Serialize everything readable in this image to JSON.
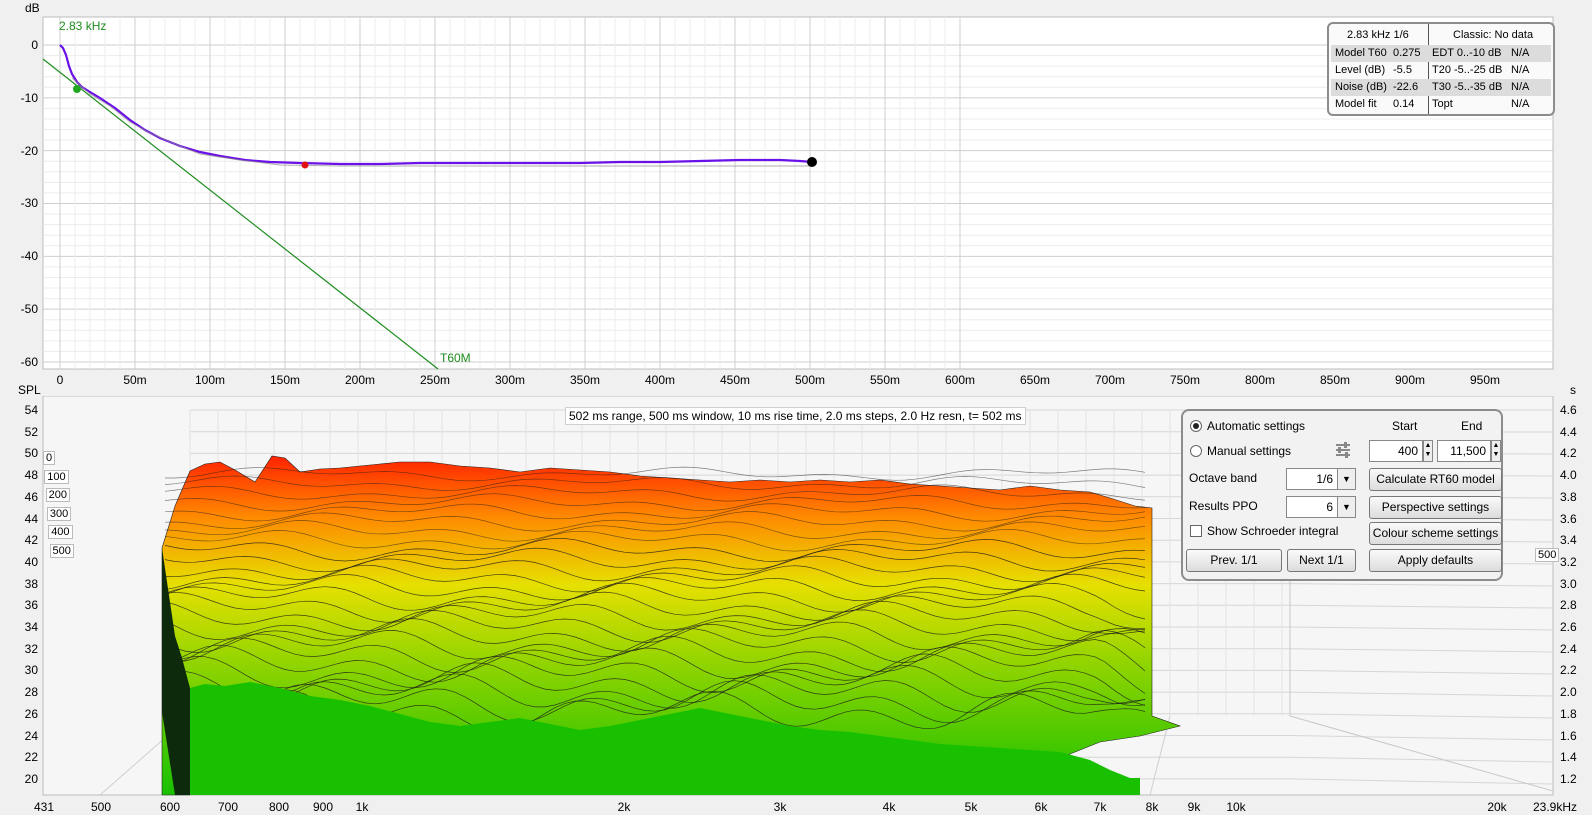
{
  "top_chart": {
    "y_unit": "dB",
    "y_ticks": [
      "0",
      "-10",
      "-20",
      "-30",
      "-40",
      "-50",
      "-60"
    ],
    "x_ticks": [
      "0",
      "50m",
      "100m",
      "150m",
      "200m",
      "250m",
      "300m",
      "350m",
      "400m",
      "450m",
      "500m",
      "550m",
      "600m",
      "650m",
      "700m",
      "750m",
      "800m",
      "850m",
      "900m",
      "950m"
    ],
    "band_label": "2.83 kHz",
    "model_label": "T60M",
    "colors": {
      "decay": "#6a10e8",
      "model": "#1e8c1e",
      "marker_start": "#1fa81f",
      "marker_noise": "#e01010",
      "marker_end": "#000000"
    }
  },
  "rt60_table": {
    "header_left": "2.83 kHz 1/6",
    "header_right": "Classic: No data",
    "rows": [
      {
        "l_label": "Model T60",
        "l_value": "0.275",
        "r_label": "EDT  0..-10 dB",
        "r_value": "N/A"
      },
      {
        "l_label": "Level (dB)",
        "l_value": "-5.5",
        "r_label": "T20 -5..-25 dB",
        "r_value": "N/A"
      },
      {
        "l_label": "Noise (dB)",
        "l_value": "-22.6",
        "r_label": "T30 -5..-35 dB",
        "r_value": "N/A"
      },
      {
        "l_label": "Model fit",
        "l_value": "0.14",
        "r_label": "Topt",
        "r_value": "N/A"
      }
    ]
  },
  "waterfall": {
    "title": "502 ms range, 500 ms window, 10 ms rise time, 2.0 ms steps,  2.0 Hz resn, t= 502 ms",
    "y_unit": "SPL",
    "y_ticks": [
      "54",
      "52",
      "50",
      "48",
      "46",
      "44",
      "42",
      "40",
      "38",
      "36",
      "34",
      "32",
      "30",
      "28",
      "26",
      "24",
      "22",
      "20"
    ],
    "right_unit": "s",
    "right_ticks": [
      "4.6",
      "4.4",
      "4.2",
      "4.0",
      "3.8",
      "3.6",
      "3.4",
      "3.2",
      "3.0",
      "2.8",
      "2.6",
      "2.4",
      "2.2",
      "2.0",
      "1.8",
      "1.6",
      "1.4",
      "1.2"
    ],
    "x_ticks": [
      "431",
      "500",
      "600",
      "700",
      "800",
      "900",
      "1k",
      "2k",
      "3k",
      "4k",
      "5k",
      "6k",
      "7k",
      "8k",
      "9k",
      "10k",
      "20k",
      "23.9kHz"
    ],
    "depth_labels": [
      "0",
      "100",
      "200",
      "300",
      "400",
      "500"
    ],
    "right_depth_label": "500",
    "colors": {
      "top": "#ff2a00",
      "mid": "#e8e000",
      "bottom": "#16c000"
    }
  },
  "controls": {
    "automatic_label": "Automatic settings",
    "manual_label": "Manual settings",
    "start_header": "Start",
    "end_header": "End",
    "start_value": "400",
    "end_value": "11,500",
    "octave_label": "Octave band",
    "octave_value": "1/6",
    "ppo_label": "Results PPO",
    "ppo_value": "6",
    "schroeder_label": "Show Schroeder integral",
    "calc_button": "Calculate RT60 model",
    "perspective_button": "Perspective settings",
    "colour_button": "Colour scheme settings",
    "prev_button": "Prev. 1/1",
    "next_button": "Next 1/1",
    "defaults_button": "Apply defaults"
  }
}
